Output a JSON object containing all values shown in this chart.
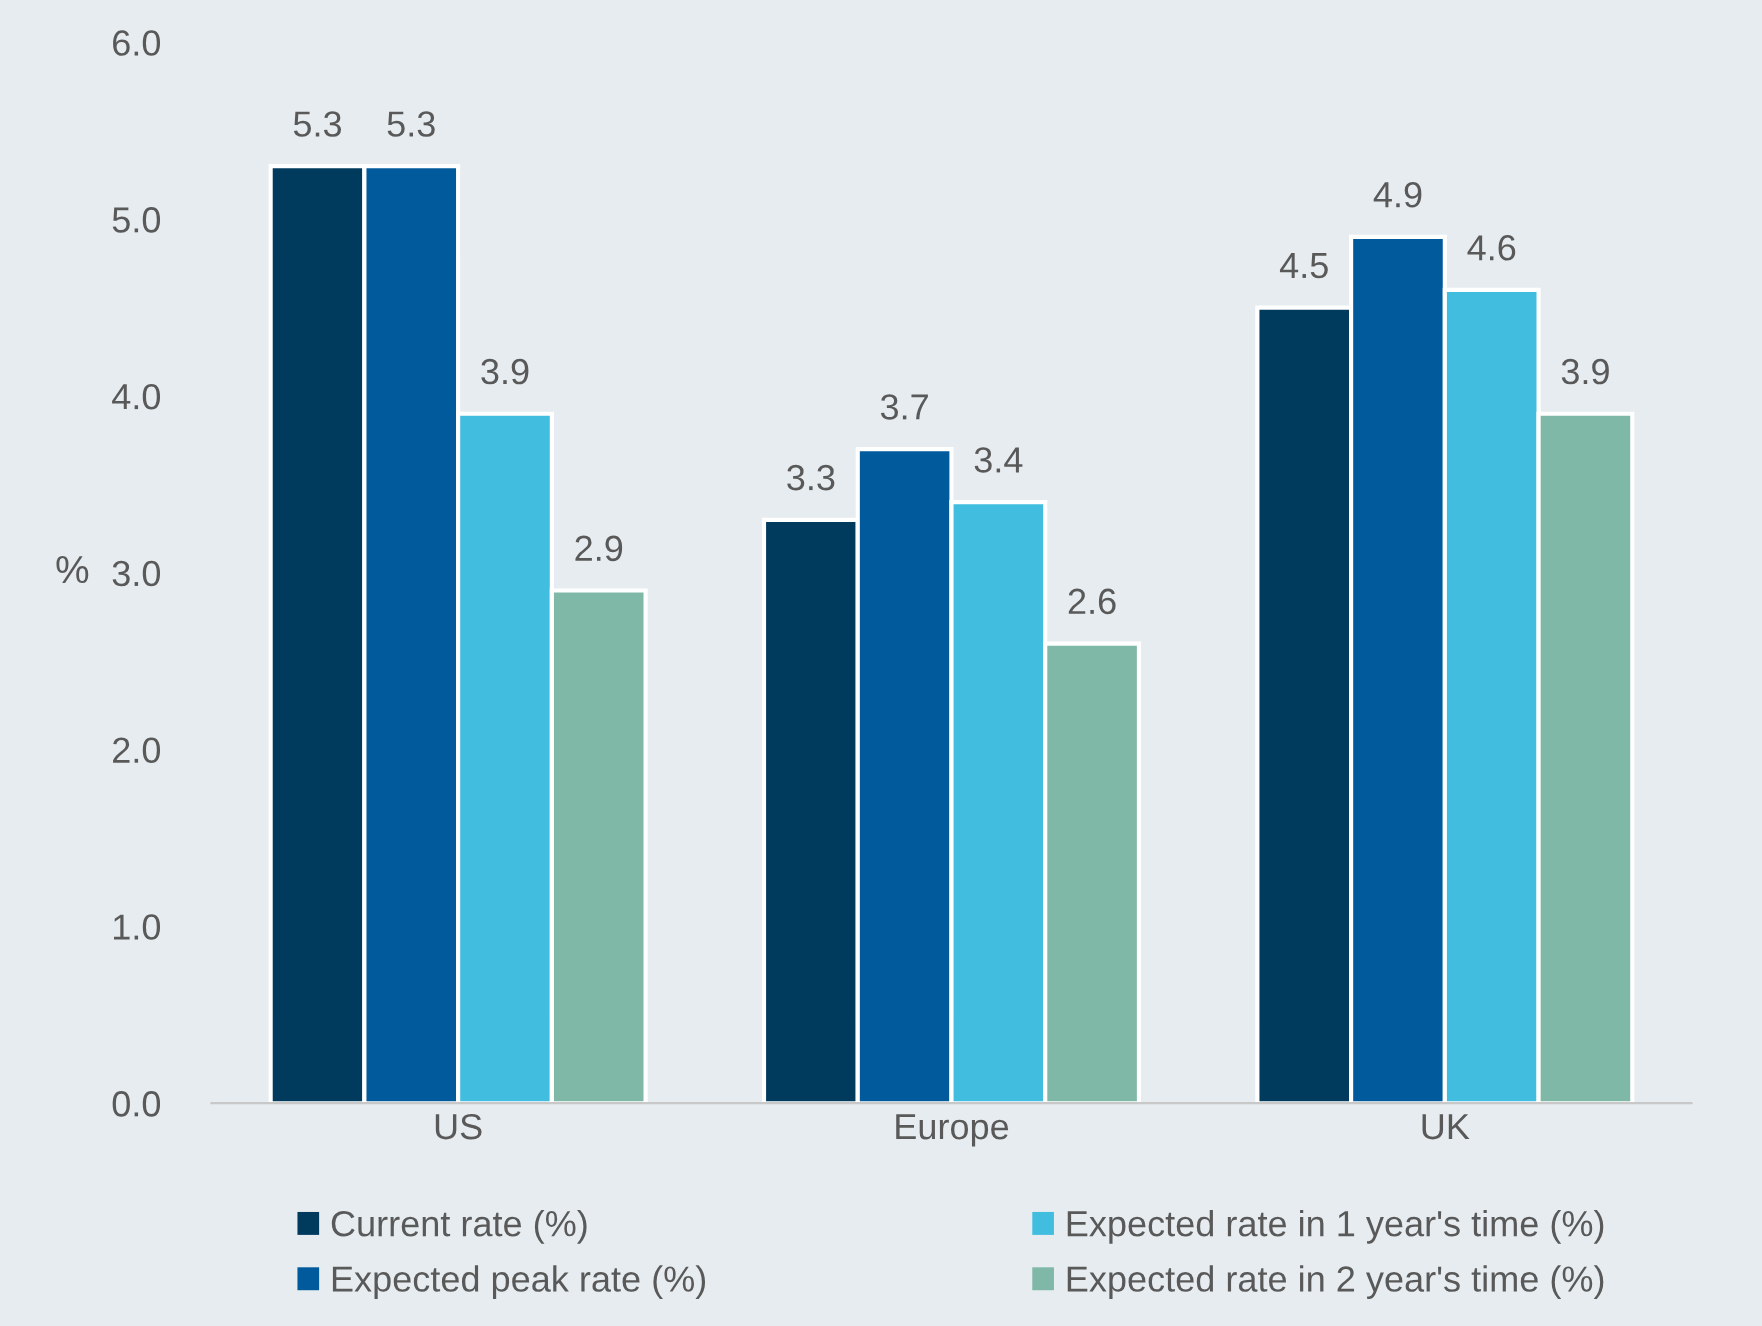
{
  "chart_data": {
    "type": "bar",
    "ylabel": "%",
    "categories": [
      "US",
      "Europe",
      "UK"
    ],
    "series": [
      {
        "name": "Current rate (%)",
        "color": "#003a5d",
        "values": [
          5.3,
          3.3,
          4.5
        ]
      },
      {
        "name": "Expected peak rate (%)",
        "color": "#005a9c",
        "values": [
          5.3,
          3.7,
          4.9
        ]
      },
      {
        "name": "Expected rate in 1 year's time (%)",
        "color": "#41bde0",
        "values": [
          3.9,
          3.4,
          4.6
        ]
      },
      {
        "name": "Expected rate in 2 year's time (%)",
        "color": "#80b8a7",
        "values": [
          2.9,
          2.6,
          3.9
        ]
      }
    ],
    "ylim": [
      0,
      6
    ],
    "yticks": [
      {
        "value": 0,
        "label": "0.0"
      },
      {
        "value": 1,
        "label": "1.0"
      },
      {
        "value": 2,
        "label": "2.0"
      },
      {
        "value": 3,
        "label": "3.0"
      },
      {
        "value": 4,
        "label": "4.0"
      },
      {
        "value": 5,
        "label": "5.0"
      },
      {
        "value": 6,
        "label": "6.0"
      }
    ],
    "data_labels": true,
    "grid": false,
    "legend": "bottom"
  }
}
